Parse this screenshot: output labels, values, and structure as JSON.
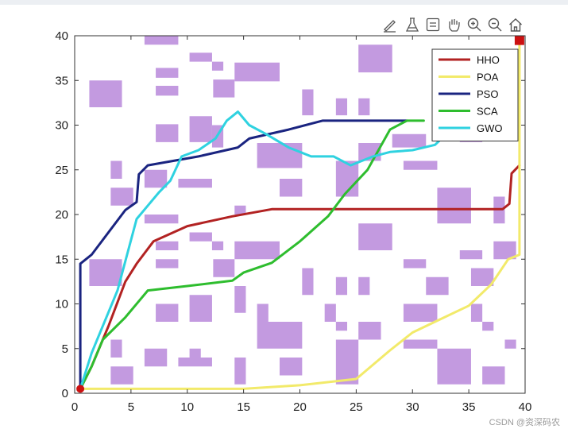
{
  "toolbar": {
    "icons": [
      "brush-icon",
      "flask-icon",
      "datatip-icon",
      "pan-hand-icon",
      "zoom-in-icon",
      "zoom-out-icon",
      "home-icon"
    ]
  },
  "watermark": "CSDN @资深码农",
  "chart_data": {
    "type": "line",
    "title": "",
    "xlabel": "",
    "ylabel": "",
    "xlim": [
      0,
      40
    ],
    "ylim": [
      0,
      40
    ],
    "xticks": [
      0,
      5,
      10,
      15,
      20,
      25,
      30,
      35,
      40
    ],
    "yticks": [
      0,
      5,
      10,
      15,
      20,
      25,
      30,
      35,
      40
    ],
    "grid": false,
    "legend_position": "top-right",
    "start_point": [
      0.5,
      0.5
    ],
    "goal_point": [
      39.5,
      39.5
    ],
    "marker_color": "#cc1111",
    "obstacle_color": "#c39ae0",
    "obstacles": [
      [
        6.2,
        39.0,
        9.2,
        40.0
      ],
      [
        1.3,
        32.0,
        4.2,
        35.0
      ],
      [
        7.2,
        35.3,
        9.2,
        36.4
      ],
      [
        7.2,
        33.3,
        9.2,
        34.4
      ],
      [
        10.2,
        37.1,
        12.2,
        38.1
      ],
      [
        12.2,
        36.1,
        13.2,
        37.1
      ],
      [
        14.2,
        34.9,
        18.2,
        37.0
      ],
      [
        12.3,
        33.1,
        14.2,
        35.1
      ],
      [
        25.2,
        35.9,
        28.2,
        39.0
      ],
      [
        20.2,
        31.1,
        21.2,
        34.0
      ],
      [
        23.2,
        31.1,
        24.2,
        33.0
      ],
      [
        25.2,
        31.1,
        26.2,
        33.0
      ],
      [
        7.2,
        28.1,
        9.2,
        30.1
      ],
      [
        10.2,
        28.1,
        12.2,
        31.0
      ],
      [
        12.2,
        27.5,
        13.2,
        30.0
      ],
      [
        28.2,
        27.5,
        31.2,
        29.0
      ],
      [
        34.2,
        28.1,
        36.2,
        29.0
      ],
      [
        16.2,
        25.2,
        20.2,
        28.0
      ],
      [
        25.2,
        26.0,
        27.2,
        28.0
      ],
      [
        3.2,
        24.0,
        4.2,
        26.0
      ],
      [
        6.2,
        23.0,
        8.2,
        25.0
      ],
      [
        9.2,
        23.0,
        12.2,
        24.0
      ],
      [
        23.2,
        22.0,
        25.2,
        26.0
      ],
      [
        29.2,
        25.0,
        32.2,
        26.0
      ],
      [
        3.2,
        21.0,
        5.2,
        23.0
      ],
      [
        18.2,
        22.0,
        20.2,
        24.0
      ],
      [
        32.2,
        19.0,
        35.2,
        23.0
      ],
      [
        37.2,
        19.0,
        38.2,
        22.0
      ],
      [
        14.2,
        20.0,
        15.2,
        21.0
      ],
      [
        6.2,
        19.0,
        9.2,
        20.0
      ],
      [
        25.2,
        16.0,
        28.2,
        19.0
      ],
      [
        10.2,
        17.0,
        12.2,
        18.0
      ],
      [
        7.2,
        16.0,
        9.2,
        17.0
      ],
      [
        12.2,
        16.0,
        13.2,
        17.0
      ],
      [
        14.2,
        15.0,
        18.2,
        17.0
      ],
      [
        34.2,
        15.0,
        36.2,
        16.0
      ],
      [
        37.2,
        15.0,
        39.2,
        17.0
      ],
      [
        1.3,
        12.0,
        4.2,
        15.0
      ],
      [
        7.2,
        14.0,
        9.2,
        15.0
      ],
      [
        12.3,
        13.0,
        14.2,
        15.0
      ],
      [
        29.2,
        14.0,
        31.2,
        15.0
      ],
      [
        20.2,
        11.0,
        21.2,
        14.0
      ],
      [
        23.2,
        11.0,
        24.2,
        13.0
      ],
      [
        25.2,
        11.0,
        26.2,
        13.0
      ],
      [
        31.2,
        11.0,
        33.2,
        13.0
      ],
      [
        35.2,
        12.0,
        37.2,
        14.0
      ],
      [
        14.2,
        9.0,
        15.2,
        12.0
      ],
      [
        7.2,
        8.0,
        9.2,
        10.0
      ],
      [
        10.2,
        8.0,
        12.2,
        11.0
      ],
      [
        16.2,
        8.0,
        17.2,
        10.0
      ],
      [
        22.2,
        8.0,
        23.2,
        10.0
      ],
      [
        29.2,
        8.0,
        32.2,
        10.0
      ],
      [
        35.2,
        8.0,
        36.2,
        10.0
      ],
      [
        23.2,
        7.0,
        24.2,
        8.0
      ],
      [
        25.2,
        6.0,
        27.2,
        8.0
      ],
      [
        36.2,
        7.0,
        37.2,
        8.0
      ],
      [
        16.2,
        5.0,
        20.2,
        8.0
      ],
      [
        29.2,
        5.0,
        32.2,
        6.0
      ],
      [
        3.2,
        4.0,
        4.2,
        6.0
      ],
      [
        6.2,
        3.0,
        8.2,
        5.0
      ],
      [
        9.2,
        3.0,
        12.2,
        4.0
      ],
      [
        23.2,
        1.0,
        25.2,
        6.0
      ],
      [
        32.2,
        1.0,
        35.2,
        5.0
      ],
      [
        38.2,
        5.0,
        39.2,
        6.0
      ],
      [
        3.2,
        1.0,
        5.2,
        3.0
      ],
      [
        18.2,
        2.0,
        20.2,
        4.0
      ],
      [
        14.2,
        1.0,
        15.2,
        4.0
      ],
      [
        36.2,
        1.0,
        38.2,
        3.0
      ],
      [
        10.2,
        4.0,
        11.2,
        5.0
      ]
    ],
    "series": [
      {
        "name": "HHO",
        "color": "#b22222",
        "x": [
          0.5,
          1.5,
          3.0,
          4.5,
          5.5,
          7.0,
          10.0,
          14.0,
          17.5,
          25.0,
          38.0,
          38.6,
          38.8,
          39.5
        ],
        "y": [
          0.5,
          3.0,
          7.5,
          12.5,
          14.5,
          17.0,
          18.7,
          19.8,
          20.6,
          20.6,
          20.6,
          21.2,
          24.6,
          25.5
        ]
      },
      {
        "name": "POA",
        "color": "#f2ea6a",
        "x": [
          0.5,
          5.0,
          10.0,
          15.0,
          20.0,
          25.0,
          28.0,
          30.0,
          32.0,
          35.0,
          37.0,
          38.5,
          39.5,
          39.5,
          39.5
        ],
        "y": [
          0.5,
          0.5,
          0.5,
          0.5,
          0.9,
          1.6,
          4.8,
          6.8,
          8.0,
          9.8,
          12.2,
          15.0,
          15.5,
          28.0,
          39.5
        ]
      },
      {
        "name": "PSO",
        "color": "#1a2480",
        "x": [
          0.5,
          0.5,
          0.5,
          1.5,
          4.5,
          5.5,
          5.7,
          6.5,
          11.0,
          14.5,
          15.5,
          19.0,
          22.0,
          25.0,
          29.5
        ],
        "y": [
          0.5,
          6.0,
          14.5,
          15.5,
          20.5,
          21.4,
          24.5,
          25.5,
          26.5,
          27.5,
          28.5,
          29.5,
          30.5,
          30.5,
          30.5
        ]
      },
      {
        "name": "SCA",
        "color": "#2ebd2e",
        "x": [
          0.5,
          1.5,
          2.5,
          4.5,
          6.5,
          10.0,
          14.0,
          15.0,
          17.5,
          20.0,
          22.5,
          24.0,
          26.0,
          28.0,
          29.5,
          31.0
        ],
        "y": [
          0.5,
          3.0,
          6.0,
          8.5,
          11.5,
          12.0,
          12.6,
          13.5,
          14.6,
          17.0,
          19.8,
          22.3,
          25.0,
          29.5,
          30.5,
          30.5
        ]
      },
      {
        "name": "GWO",
        "color": "#2fd2e0",
        "x": [
          0.5,
          1.5,
          3.8,
          5.5,
          6.5,
          7.5,
          8.5,
          9.5,
          11.0,
          12.5,
          13.5,
          14.5,
          15.5,
          17.0,
          19.0,
          21.0,
          23.0,
          24.5,
          25.5,
          26.5,
          28.0,
          30.0,
          32.0,
          33.0
        ],
        "y": [
          0.5,
          4.5,
          11.5,
          19.5,
          21.0,
          22.5,
          23.8,
          26.5,
          27.2,
          28.5,
          30.5,
          31.5,
          30.0,
          29.0,
          27.5,
          26.5,
          26.5,
          25.5,
          26.0,
          26.5,
          27.0,
          27.2,
          27.8,
          29.0
        ]
      }
    ]
  }
}
